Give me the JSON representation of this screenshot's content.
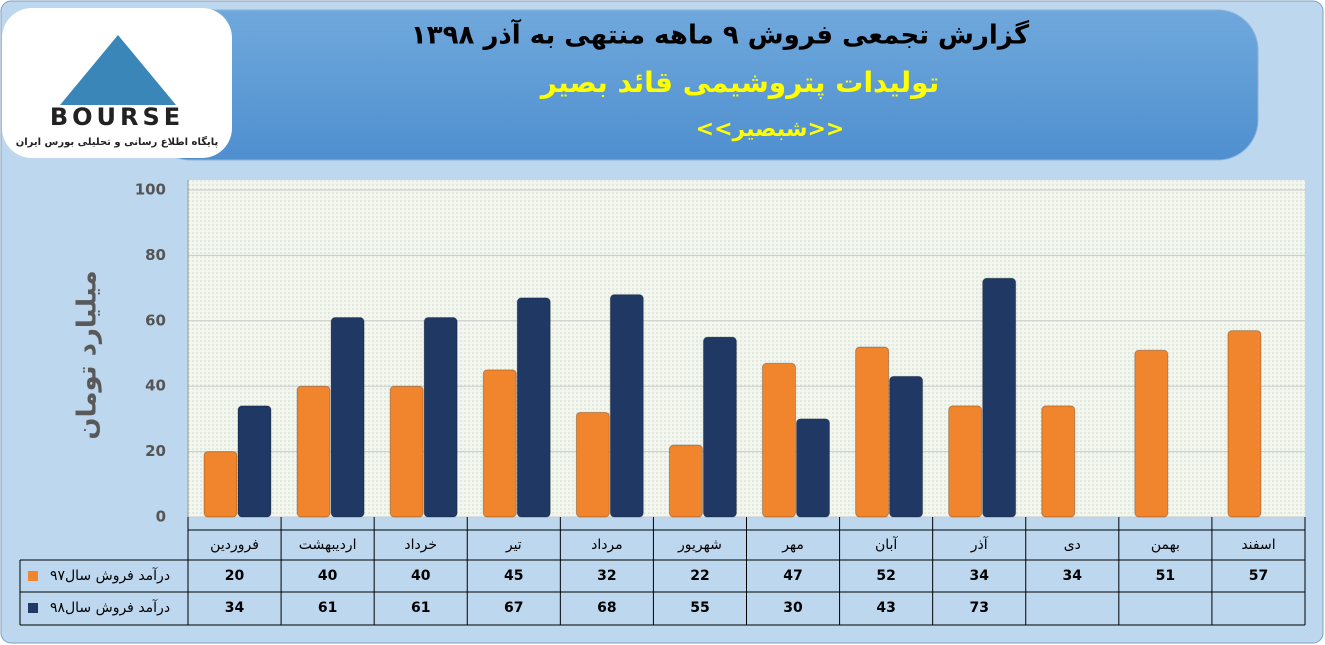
{
  "logo": {
    "text": "BOURSE",
    "subtitle": "پایگاه اطلاع رسانی و تحلیلی بورس ایران"
  },
  "chart_data": {
    "type": "bar",
    "title": "گزارش تجمعی فروش ۹ ماهه منتهی به آذر ۱۳۹۸",
    "subtitle": "تولیدات پتروشیمی قائد بصیر",
    "annotation": "<<شبصیر>>",
    "y_label": "میلیارد تومان",
    "categories": [
      "فروردین",
      "اردیبهشت",
      "خرداد",
      "تیر",
      "مرداد",
      "شهریور",
      "مهر",
      "آبان",
      "آذر",
      "دی",
      "بهمن",
      "اسفند"
    ],
    "series": [
      {
        "name": "درآمد فروش سال۹۷",
        "color": "#f0852d",
        "values": [
          20,
          40,
          40,
          45,
          32,
          22,
          47,
          52,
          34,
          34,
          51,
          57
        ]
      },
      {
        "name": "درآمد فروش سال۹۸",
        "color": "#1f3864",
        "values": [
          34,
          61,
          61,
          67,
          68,
          55,
          30,
          43,
          73,
          null,
          null,
          null
        ]
      }
    ],
    "ylim": [
      0,
      100
    ],
    "yticks": [
      0,
      20,
      40,
      60,
      80,
      100
    ],
    "grid": true
  }
}
